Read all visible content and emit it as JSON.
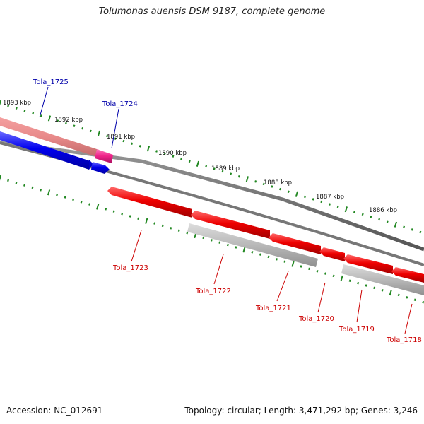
{
  "title": "Tolumonas auensis DSM 9187, complete genome",
  "footer": {
    "accession": "Accession: NC_012691",
    "summary": "Topology: circular; Length: 3,471,292 bp; Genes: 3,246"
  },
  "colors": {
    "forward_gene": "#0000ee",
    "forward_label": "#0000aa",
    "reverse_gene": "#ee0000",
    "reverse_label": "#cc0000",
    "selected_gene": "#ee2288",
    "backbone": "#777777",
    "ticks": "#228822"
  },
  "scale_labels": [
    "1893 kbp",
    "1892 kbp",
    "1891 kbp",
    "1890 kbp",
    "1889 kbp",
    "1888 kbp",
    "1887 kbp",
    "1886 kbp"
  ],
  "genes": [
    {
      "locus": "Tola_1725",
      "strand": "+"
    },
    {
      "locus": "Tola_1724",
      "strand": "+"
    },
    {
      "locus": "Tola_1723",
      "strand": "-"
    },
    {
      "locus": "Tola_1722",
      "strand": "-"
    },
    {
      "locus": "Tola_1721",
      "strand": "-"
    },
    {
      "locus": "Tola_1720",
      "strand": "-"
    },
    {
      "locus": "Tola_1719",
      "strand": "-"
    },
    {
      "locus": "Tola_1718",
      "strand": "-"
    }
  ]
}
